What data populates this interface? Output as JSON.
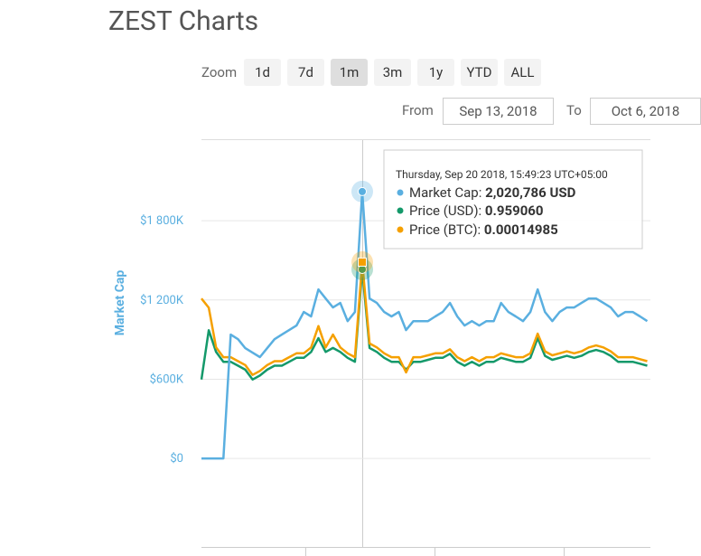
{
  "header": {
    "title": "ZEST Charts",
    "zoom_label": "Zoom",
    "zoom_buttons": [
      "1d",
      "7d",
      "1m",
      "3m",
      "1y",
      "YTD",
      "ALL"
    ],
    "zoom_selected": 2,
    "from_label": "From",
    "from_date": "Sep 13, 2018",
    "to_label": "To",
    "to_date": "Oct 6, 2018"
  },
  "chart_data": {
    "type": "line",
    "y_label": "Market Cap",
    "categories": [
      null,
      null,
      null,
      null,
      null,
      null,
      null,
      null,
      null,
      null,
      null,
      null,
      null,
      null,
      null,
      null,
      null,
      null,
      null,
      null,
      null,
      null,
      null,
      null,
      null,
      null,
      null,
      null,
      null,
      null,
      null,
      null,
      null,
      null,
      null,
      null,
      null,
      null,
      null,
      null,
      null,
      null,
      null,
      null,
      null,
      null,
      null,
      null,
      null,
      null,
      null,
      null,
      null,
      null,
      null,
      null,
      null,
      null,
      null,
      null,
      null,
      null
    ],
    "ylim": [
      -670000,
      2410000
    ],
    "yticks": [
      {
        "value": 0,
        "label": "$0"
      },
      {
        "value": 600000,
        "label": "$600K"
      },
      {
        "value": 1200000,
        "label": "$1 200K"
      },
      {
        "value": 1800000,
        "label": "$1 800K"
      }
    ],
    "y2lim": [
      -0.45,
      1.615
    ],
    "y3lim": [
      -6.77e-05,
      0.000243
    ],
    "grid": true,
    "series": [
      {
        "color": "#5aafe0",
        "values": [
          0,
          0,
          0,
          0,
          938000,
          903000,
          835000,
          801000,
          767000,
          835000,
          903000,
          938000,
          972000,
          1006000,
          1109000,
          1075000,
          1280000,
          1211000,
          1143000,
          1177000,
          1040000,
          1109000,
          2020786,
          1211000,
          1177000,
          1109000,
          1075000,
          1109000,
          972000,
          1040000,
          1040000,
          1040000,
          1075000,
          1109000,
          1177000,
          1075000,
          1006000,
          1040000,
          1006000,
          1040000,
          1040000,
          1177000,
          1109000,
          1075000,
          1040000,
          1109000,
          1280000,
          1109000,
          1040000,
          1109000,
          1143000,
          1143000,
          1177000,
          1211000,
          1211000,
          1177000,
          1143000,
          1075000,
          1109000,
          1109000,
          1075000,
          1040000
        ]
      },
      {
        "color": "#14996a",
        "axis": "y2",
        "values": [
          0.4,
          0.65,
          0.54,
          0.49,
          0.49,
          0.47,
          0.45,
          0.4,
          0.42,
          0.45,
          0.47,
          0.47,
          0.49,
          0.51,
          0.51,
          0.54,
          0.61,
          0.54,
          0.56,
          0.54,
          0.51,
          0.49,
          0.95906,
          0.56,
          0.54,
          0.51,
          0.49,
          0.49,
          0.45,
          0.49,
          0.49,
          0.5,
          0.51,
          0.51,
          0.53,
          0.49,
          0.47,
          0.49,
          0.47,
          0.49,
          0.49,
          0.51,
          0.5,
          0.49,
          0.49,
          0.51,
          0.61,
          0.52,
          0.5,
          0.51,
          0.52,
          0.51,
          0.52,
          0.54,
          0.55,
          0.54,
          0.52,
          0.49,
          0.49,
          0.49,
          0.48,
          0.47
        ]
      },
      {
        "color": "#f5a000",
        "axis": "y3",
        "values": [
          0.000122,
          0.000115,
          8.47e-05,
          7.72e-05,
          7.72e-05,
          7.42e-05,
          7.12e-05,
          6.37e-05,
          6.67e-05,
          7.12e-05,
          7.42e-05,
          7.42e-05,
          7.72e-05,
          8.02e-05,
          8.02e-05,
          8.47e-05,
          0.000101,
          8.47e-05,
          9.45e-05,
          8.47e-05,
          8.02e-05,
          7.72e-05,
          0.00014985,
          8.77e-05,
          8.47e-05,
          8.02e-05,
          7.72e-05,
          7.72e-05,
          6.56e-05,
          7.72e-05,
          7.72e-05,
          7.87e-05,
          8.02e-05,
          8.02e-05,
          8.32e-05,
          7.72e-05,
          7.42e-05,
          7.72e-05,
          7.42e-05,
          7.72e-05,
          7.72e-05,
          8.02e-05,
          7.87e-05,
          7.72e-05,
          7.72e-05,
          8.02e-05,
          9.52e-05,
          8.17e-05,
          7.87e-05,
          8.02e-05,
          8.17e-05,
          8.02e-05,
          8.17e-05,
          8.47e-05,
          8.62e-05,
          8.47e-05,
          8.17e-05,
          7.72e-05,
          7.72e-05,
          7.72e-05,
          7.57e-05,
          7.42e-05
        ]
      }
    ],
    "tooltip": {
      "date": "Thursday, Sep 20 2018, 15:49:23 UTC+05:00",
      "rows": [
        {
          "label": "Market Cap:",
          "value": "2,020,786 USD"
        },
        {
          "label": "Price (USD):",
          "value": "0.959060"
        },
        {
          "label": "Price (BTC):",
          "value": "0.00014985"
        }
      ]
    }
  }
}
